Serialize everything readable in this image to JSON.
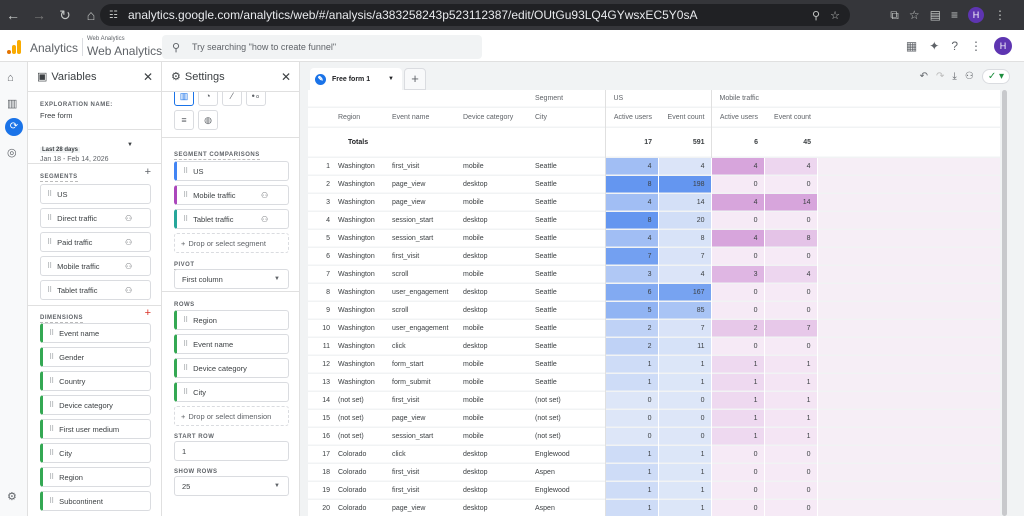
{
  "browser": {
    "url": "analytics.google.com/analytics/web/#/analysis/a383258243p523112387/edit/OUtGu93LQ4GYwsxEC5Y0sA",
    "profile": "H"
  },
  "app": {
    "name": "Analytics",
    "property_small": "Web Analytics",
    "property": "Web Analytics",
    "search_placeholder": "Try searching \"how to create funnel\"",
    "profile": "H"
  },
  "variables": {
    "title": "Variables",
    "exploration_label": "EXPLORATION NAME:",
    "exploration_name": "Free form",
    "date_chip": "Last 28 days",
    "date_range": "Jan 18 - Feb 14, 2026",
    "segments_label": "SEGMENTS",
    "segments": [
      "US",
      "Direct traffic",
      "Paid traffic",
      "Mobile traffic",
      "Tablet traffic"
    ],
    "dimensions_label": "DIMENSIONS",
    "dimensions": [
      "Event name",
      "Gender",
      "Country",
      "Device category",
      "First user medium",
      "City",
      "Region",
      "Subcontinent"
    ]
  },
  "settings": {
    "title": "Settings",
    "segment_comparisons_label": "SEGMENT COMPARISONS",
    "segment_comparisons": [
      {
        "name": "US",
        "color": "#4285f4"
      },
      {
        "name": "Mobile traffic",
        "color": "#ab47bc"
      },
      {
        "name": "Tablet traffic",
        "color": "#26a69a"
      }
    ],
    "drop_segment": "Drop or select segment",
    "pivot_label": "PIVOT",
    "pivot": "First column",
    "rows_label": "ROWS",
    "rows": [
      "Region",
      "Event name",
      "Device category",
      "City"
    ],
    "drop_dimension": "Drop or select dimension",
    "start_row_label": "START ROW",
    "start_row": "1",
    "show_rows_label": "SHOW ROWS",
    "show_rows": "25"
  },
  "tab": {
    "name": "Free form 1"
  },
  "table": {
    "segment_header": "Segment",
    "segments": [
      "US",
      "Mobile traffic"
    ],
    "columns": [
      "Region",
      "Event name",
      "Device category",
      "City"
    ],
    "metrics": [
      "Active users",
      "Event count",
      "Active users",
      "Event count"
    ],
    "totals_label": "Totals",
    "totals": [
      "17",
      "591",
      "6",
      "45"
    ],
    "rows": [
      [
        "1",
        "Washington",
        "first_visit",
        "mobile",
        "Seattle",
        "4",
        "4",
        "4",
        "4"
      ],
      [
        "2",
        "Washington",
        "page_view",
        "desktop",
        "Seattle",
        "8",
        "198",
        "0",
        "0"
      ],
      [
        "3",
        "Washington",
        "page_view",
        "mobile",
        "Seattle",
        "4",
        "14",
        "4",
        "14"
      ],
      [
        "4",
        "Washington",
        "session_start",
        "desktop",
        "Seattle",
        "8",
        "20",
        "0",
        "0"
      ],
      [
        "5",
        "Washington",
        "session_start",
        "mobile",
        "Seattle",
        "4",
        "8",
        "4",
        "8"
      ],
      [
        "6",
        "Washington",
        "first_visit",
        "desktop",
        "Seattle",
        "7",
        "7",
        "0",
        "0"
      ],
      [
        "7",
        "Washington",
        "scroll",
        "mobile",
        "Seattle",
        "3",
        "4",
        "3",
        "4"
      ],
      [
        "8",
        "Washington",
        "user_engagement",
        "desktop",
        "Seattle",
        "6",
        "167",
        "0",
        "0"
      ],
      [
        "9",
        "Washington",
        "scroll",
        "desktop",
        "Seattle",
        "5",
        "85",
        "0",
        "0"
      ],
      [
        "10",
        "Washington",
        "user_engagement",
        "mobile",
        "Seattle",
        "2",
        "7",
        "2",
        "7"
      ],
      [
        "11",
        "Washington",
        "click",
        "desktop",
        "Seattle",
        "2",
        "11",
        "0",
        "0"
      ],
      [
        "12",
        "Washington",
        "form_start",
        "mobile",
        "Seattle",
        "1",
        "1",
        "1",
        "1"
      ],
      [
        "13",
        "Washington",
        "form_submit",
        "mobile",
        "Seattle",
        "1",
        "1",
        "1",
        "1"
      ],
      [
        "14",
        "(not set)",
        "first_visit",
        "mobile",
        "(not set)",
        "0",
        "0",
        "1",
        "1"
      ],
      [
        "15",
        "(not set)",
        "page_view",
        "mobile",
        "(not set)",
        "0",
        "0",
        "1",
        "1"
      ],
      [
        "16",
        "(not set)",
        "session_start",
        "mobile",
        "(not set)",
        "0",
        "0",
        "1",
        "1"
      ],
      [
        "17",
        "Colorado",
        "click",
        "desktop",
        "Englewood",
        "1",
        "1",
        "0",
        "0"
      ],
      [
        "18",
        "Colorado",
        "first_visit",
        "desktop",
        "Aspen",
        "1",
        "1",
        "0",
        "0"
      ],
      [
        "19",
        "Colorado",
        "first_visit",
        "desktop",
        "Englewood",
        "1",
        "1",
        "0",
        "0"
      ],
      [
        "20",
        "Colorado",
        "page_view",
        "desktop",
        "Aspen",
        "1",
        "1",
        "0",
        "0"
      ]
    ]
  }
}
